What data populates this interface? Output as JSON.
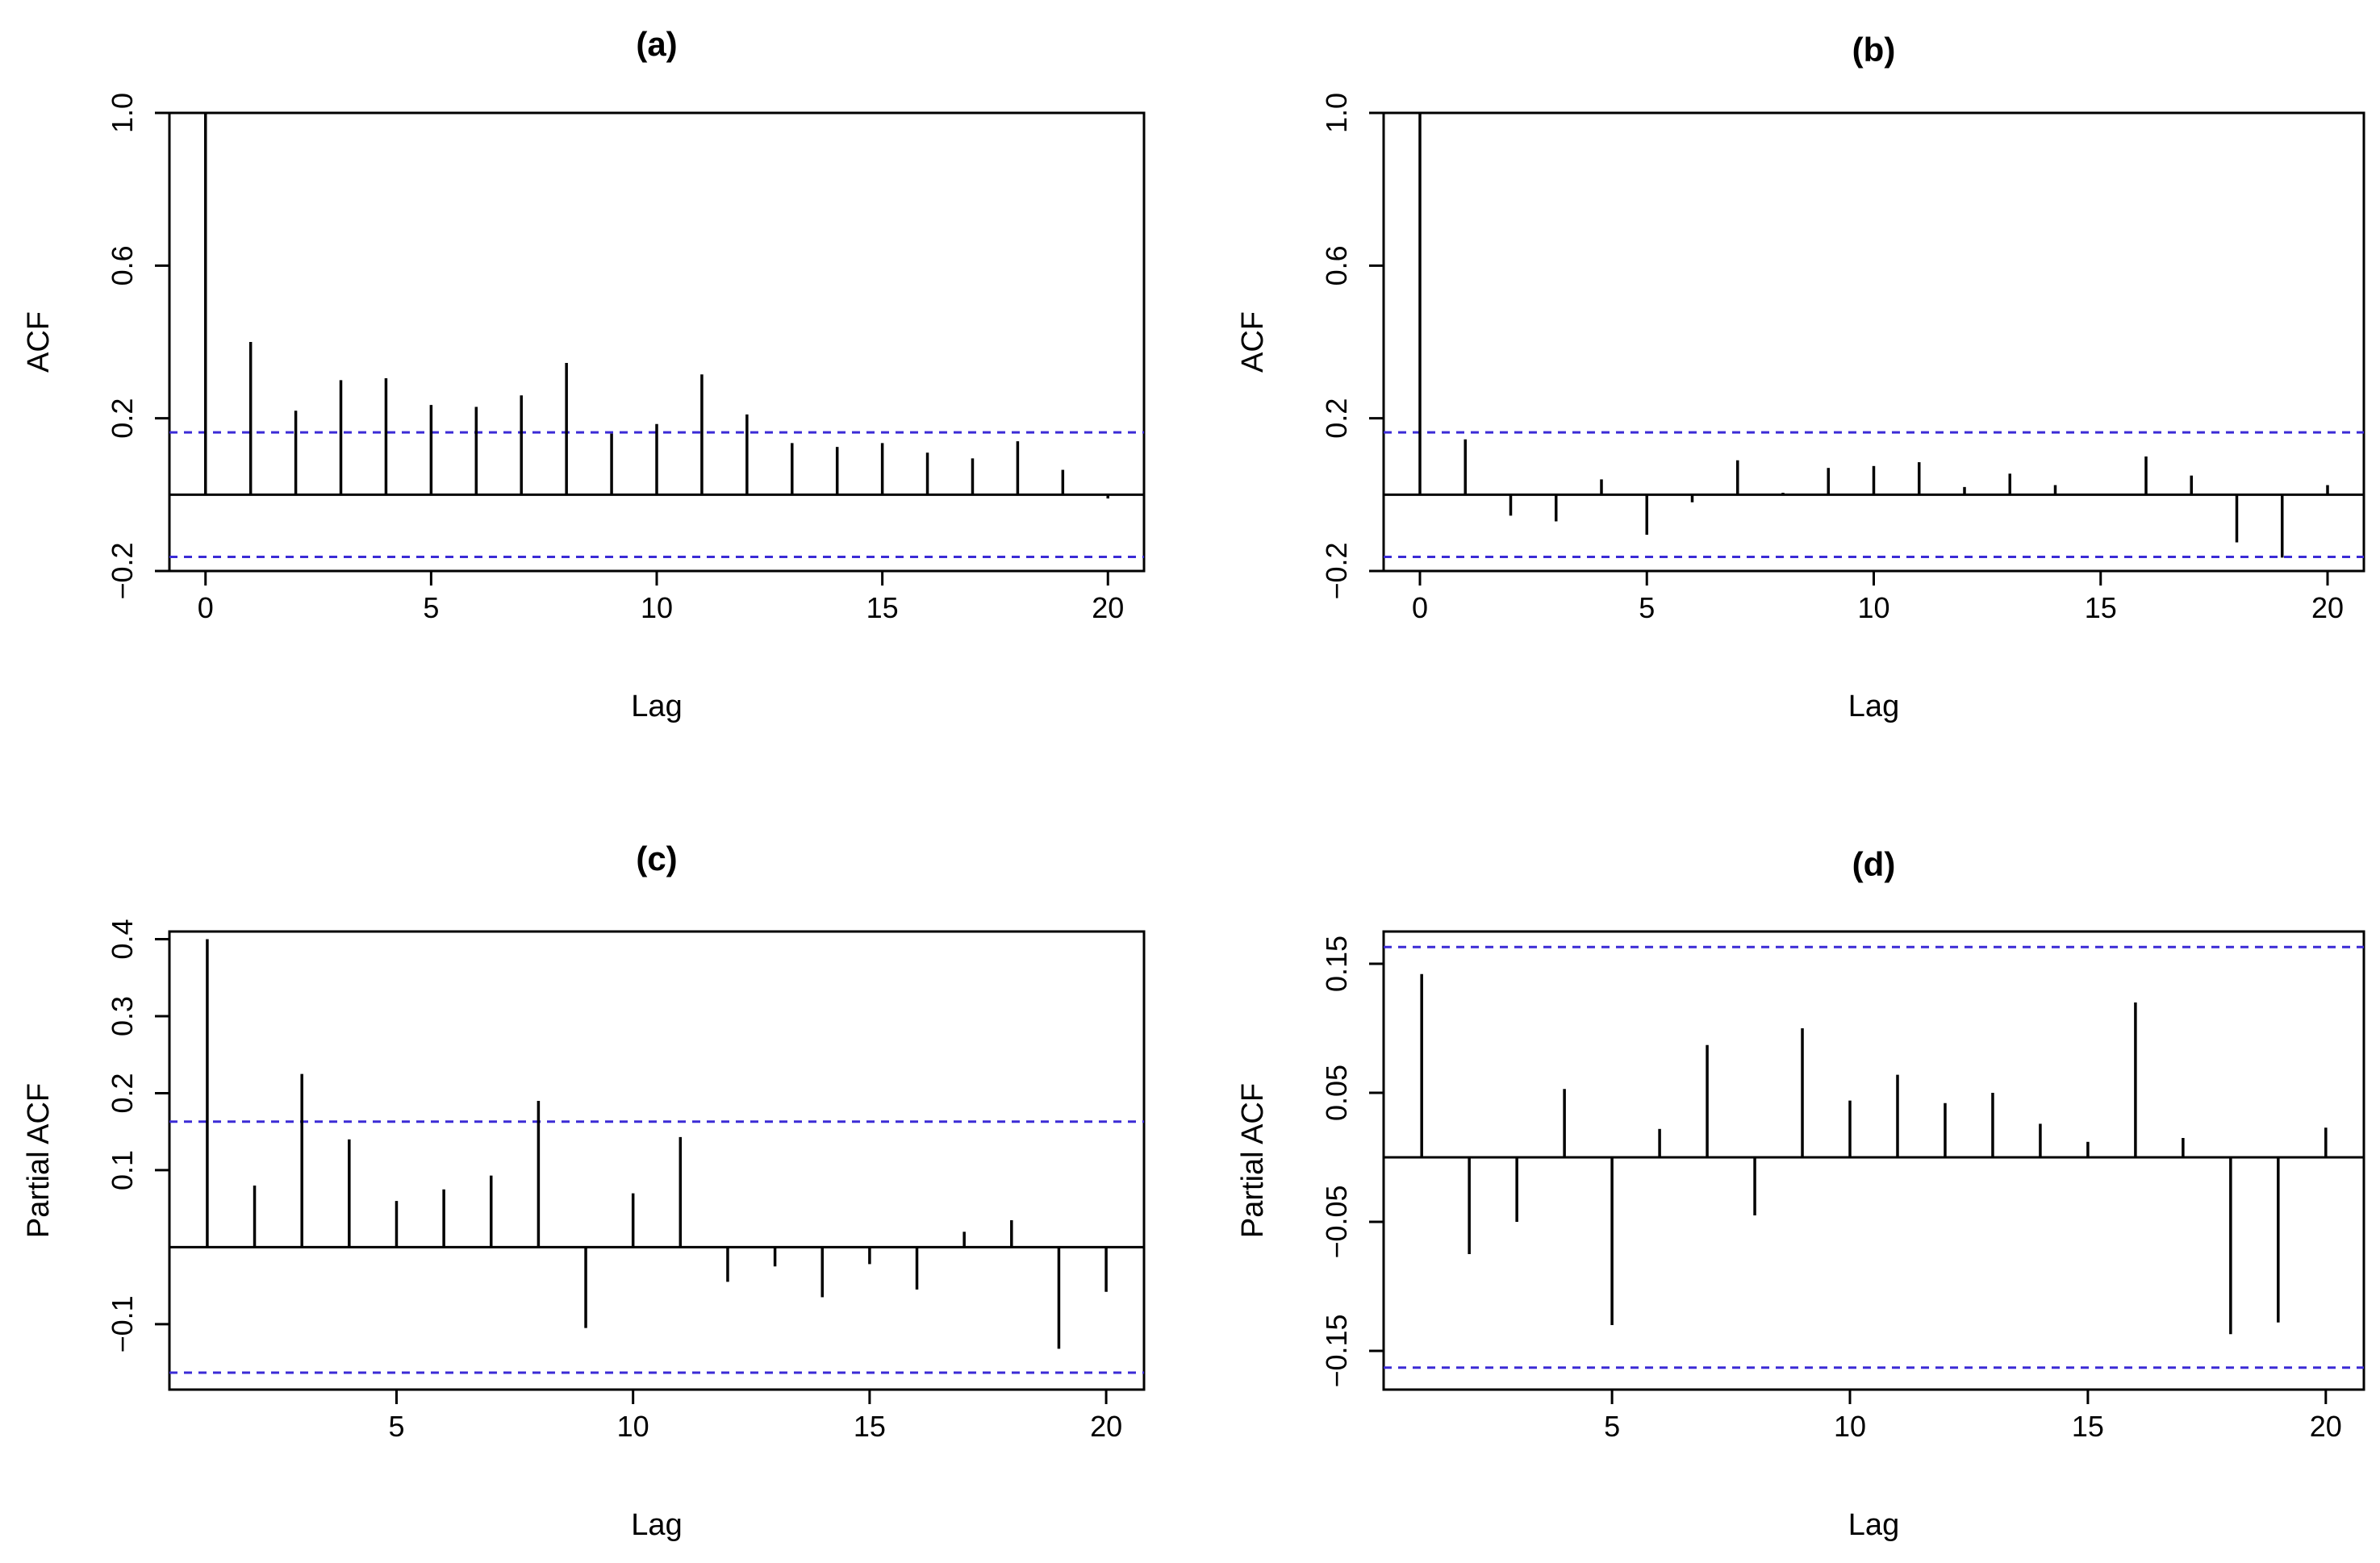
{
  "chart_data": [
    {
      "type": "bar",
      "title": "(a)",
      "xlabel": "Lag",
      "ylabel": "ACF",
      "xlim": [
        -0.8,
        20.8
      ],
      "ylim": [
        -0.2,
        1.0
      ],
      "xticks": [
        0,
        5,
        10,
        15,
        20
      ],
      "yticks": [
        -0.2,
        0.2,
        0.6,
        1.0
      ],
      "ytick_labels": [
        "-0.2",
        "0.2",
        "0.6",
        "1.0"
      ],
      "confidence_bound": 0.163,
      "bound_color": "#3b2bd6",
      "x": [
        0,
        1,
        2,
        3,
        4,
        5,
        6,
        7,
        8,
        9,
        10,
        11,
        12,
        13,
        14,
        15,
        16,
        17,
        18,
        19,
        20
      ],
      "values": [
        1.0,
        0.4,
        0.22,
        0.3,
        0.305,
        0.235,
        0.23,
        0.26,
        0.345,
        0.16,
        0.185,
        0.315,
        0.21,
        0.135,
        0.125,
        0.135,
        0.11,
        0.095,
        0.14,
        0.065,
        -0.01
      ]
    },
    {
      "type": "bar",
      "title": "(b)",
      "xlabel": "Lag",
      "ylabel": "ACF",
      "xlim": [
        -0.8,
        20.8
      ],
      "ylim": [
        -0.2,
        1.0
      ],
      "xticks": [
        0,
        5,
        10,
        15,
        20
      ],
      "yticks": [
        -0.2,
        0.2,
        0.6,
        1.0
      ],
      "ytick_labels": [
        "-0.2",
        "0.2",
        "0.6",
        "1.0"
      ],
      "confidence_bound": 0.163,
      "bound_color": "#3b2bd6",
      "x": [
        0,
        1,
        2,
        3,
        4,
        5,
        6,
        7,
        8,
        9,
        10,
        11,
        12,
        13,
        14,
        15,
        16,
        17,
        18,
        19,
        20
      ],
      "values": [
        1.0,
        0.145,
        -0.055,
        -0.07,
        0.04,
        -0.105,
        -0.02,
        0.09,
        0.005,
        0.07,
        0.075,
        0.085,
        0.02,
        0.055,
        0.025,
        0.0,
        0.1,
        0.05,
        -0.125,
        -0.165,
        0.025
      ]
    },
    {
      "type": "bar",
      "title": "(c)",
      "xlabel": "Lag",
      "ylabel": "Partial ACF",
      "xlim": [
        0.2,
        20.8
      ],
      "ylim": [
        -0.185,
        0.41
      ],
      "xticks": [
        5,
        10,
        15,
        20
      ],
      "yticks": [
        -0.1,
        0.1,
        0.2,
        0.3,
        0.4
      ],
      "ytick_labels": [
        "-0.1",
        "0.1",
        "0.2",
        "0.3",
        "0.4"
      ],
      "confidence_bound": 0.163,
      "bound_color": "#3b2bd6",
      "x": [
        1,
        2,
        3,
        4,
        5,
        6,
        7,
        8,
        9,
        10,
        11,
        12,
        13,
        14,
        15,
        16,
        17,
        18,
        19,
        20
      ],
      "values": [
        0.4,
        0.08,
        0.225,
        0.14,
        0.06,
        0.075,
        0.093,
        0.19,
        -0.105,
        0.07,
        0.143,
        -0.045,
        -0.025,
        -0.065,
        -0.022,
        -0.055,
        0.02,
        0.035,
        -0.132,
        -0.058
      ]
    },
    {
      "type": "bar",
      "title": "(d)",
      "xlabel": "Lag",
      "ylabel": "Partial ACF",
      "xlim": [
        0.2,
        20.8
      ],
      "ylim": [
        -0.18,
        0.175
      ],
      "xticks": [
        5,
        10,
        15,
        20
      ],
      "yticks": [
        -0.15,
        -0.05,
        0.05,
        0.15
      ],
      "ytick_labels": [
        "-0.15",
        "-0.05",
        "0.05",
        "0.15"
      ],
      "confidence_bound": 0.163,
      "bound_color": "#3b2bd6",
      "x": [
        1,
        2,
        3,
        4,
        5,
        6,
        7,
        8,
        9,
        10,
        11,
        12,
        13,
        14,
        15,
        16,
        17,
        18,
        19,
        20
      ],
      "values": [
        0.142,
        -0.075,
        -0.05,
        0.053,
        -0.13,
        0.022,
        0.087,
        -0.045,
        0.1,
        0.044,
        0.064,
        0.042,
        0.05,
        0.026,
        0.012,
        0.12,
        0.015,
        -0.137,
        -0.128,
        0.023
      ]
    }
  ]
}
